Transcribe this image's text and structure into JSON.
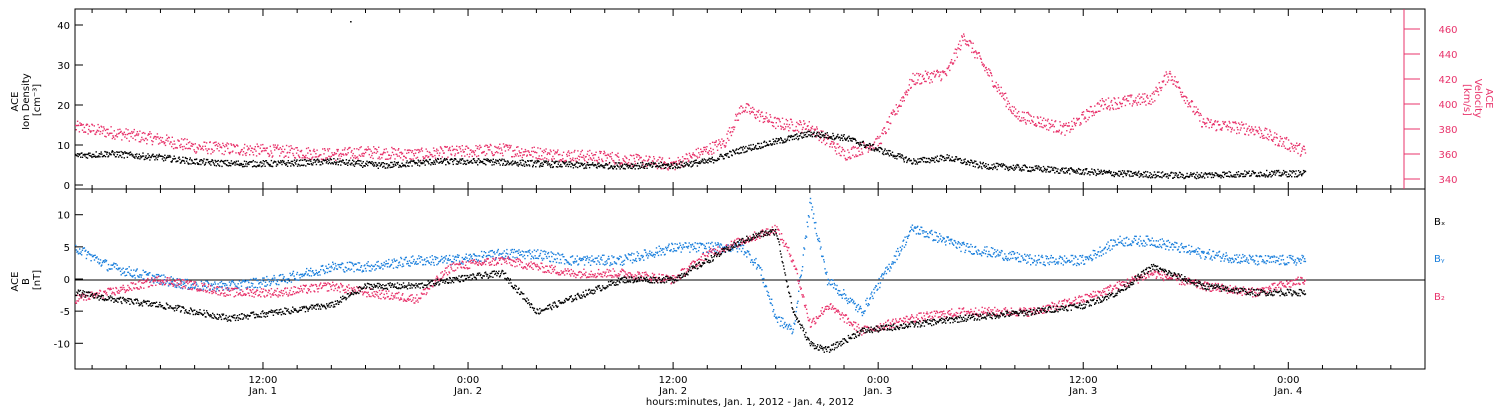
{
  "colors": {
    "black": "#000000",
    "pink": "#e8336b",
    "blue": "#1a7fdc"
  },
  "top_panel": {
    "ylabel_left": [
      "ACE",
      "Ion Density",
      "[cm⁻³]"
    ],
    "ylabel_right": [
      "ACE",
      "Velocity",
      "[km/s]"
    ]
  },
  "bottom_panel": {
    "ylabel_left": [
      "ACE",
      "B",
      "[nT]"
    ],
    "legend": [
      {
        "label": "Bₓ",
        "color": "#000000"
      },
      {
        "label": "Bᵧ",
        "color": "#1a7fdc"
      },
      {
        "label": "B₂",
        "color": "#e8336b"
      }
    ]
  },
  "xaxis": {
    "title": "hours:minutes, Jan.  1, 2012 - Jan.  4, 2012",
    "ticks": [
      {
        "t": 12,
        "l1": "12:00",
        "l2": "Jan. 1"
      },
      {
        "t": 24,
        "l1": "0:00",
        "l2": "Jan. 2"
      },
      {
        "t": 36,
        "l1": "12:00",
        "l2": "Jan. 2"
      },
      {
        "t": 48,
        "l1": "0:00",
        "l2": "Jan. 3"
      },
      {
        "t": 60,
        "l1": "12:00",
        "l2": "Jan. 3"
      },
      {
        "t": 72,
        "l1": "0:00",
        "l2": "Jan. 4"
      }
    ]
  },
  "chart_data": [
    {
      "type": "scatter",
      "title": "",
      "xlabel": "hours:minutes, Jan.  1, 2012 - Jan.  4, 2012",
      "ylabel": "ACE Ion Density [cm⁻³]",
      "y2label": "ACE Velocity [km/s]",
      "xlim": [
        "2012-01-01 01:00",
        "2012-01-04 08:00"
      ],
      "ylim": [
        -1,
        44
      ],
      "y2lim": [
        332,
        476
      ],
      "yticks": [
        0,
        10,
        20,
        30,
        40
      ],
      "y2ticks": [
        340,
        360,
        380,
        400,
        420,
        440,
        460
      ],
      "series": [
        {
          "name": "Ion Density",
          "color": "#000000",
          "axis": "left",
          "x": [
            "2012-01-01 01:00",
            "2012-01-01 03:00",
            "2012-01-01 06:00",
            "2012-01-01 08:00",
            "2012-01-01 10:00",
            "2012-01-01 13:00",
            "2012-01-01 16:00",
            "2012-01-01 19:00",
            "2012-01-01 22:00",
            "2012-01-02 01:00",
            "2012-01-02 04:00",
            "2012-01-02 07:00",
            "2012-01-02 10:00",
            "2012-01-02 12:00",
            "2012-01-02 14:00",
            "2012-01-02 16:00",
            "2012-01-02 18:00",
            "2012-01-02 20:00",
            "2012-01-02 22:00",
            "2012-01-03 00:00",
            "2012-01-03 02:00",
            "2012-01-03 04:00",
            "2012-01-03 06:00",
            "2012-01-03 10:00",
            "2012-01-03 14:00",
            "2012-01-03 18:00",
            "2012-01-03 22:00",
            "2012-01-04 01:00"
          ],
          "y": [
            7.5,
            8,
            7,
            6,
            5.5,
            5.5,
            6,
            5,
            6,
            6,
            5.5,
            5,
            5,
            5,
            6,
            9,
            11,
            13,
            12,
            9,
            6,
            7,
            5,
            4,
            3,
            2.5,
            3,
            3
          ]
        },
        {
          "name": "Velocity",
          "color": "#e8336b",
          "axis": "right",
          "x": [
            "2012-01-01 01:00",
            "2012-01-01 03:00",
            "2012-01-01 06:00",
            "2012-01-01 08:00",
            "2012-01-01 11:00",
            "2012-01-01 14:00",
            "2012-01-01 16:00",
            "2012-01-01 18:00",
            "2012-01-01 21:00",
            "2012-01-01 23:00",
            "2012-01-02 02:00",
            "2012-01-02 05:00",
            "2012-01-02 08:00",
            "2012-01-02 12:00",
            "2012-01-02 15:00",
            "2012-01-02 16:00",
            "2012-01-02 18:00",
            "2012-01-02 20:00",
            "2012-01-02 22:00",
            "2012-01-03 00:00",
            "2012-01-03 02:00",
            "2012-01-03 04:00",
            "2012-01-03 05:00",
            "2012-01-03 08:00",
            "2012-01-03 11:00",
            "2012-01-03 13:00",
            "2012-01-03 16:00",
            "2012-01-03 17:00",
            "2012-01-03 19:00",
            "2012-01-03 22:00",
            "2012-01-04 01:00"
          ],
          "y": [
            382,
            378,
            372,
            366,
            364,
            362,
            360,
            362,
            360,
            362,
            364,
            360,
            358,
            352,
            370,
            398,
            385,
            382,
            360,
            370,
            420,
            425,
            455,
            392,
            380,
            400,
            405,
            425,
            385,
            380,
            362
          ]
        }
      ]
    },
    {
      "type": "scatter",
      "title": "",
      "xlabel": "hours:minutes, Jan.  1, 2012 - Jan.  4, 2012",
      "ylabel": "ACE B [nT]",
      "xlim": [
        "2012-01-01 01:00",
        "2012-01-04 08:00"
      ],
      "ylim": [
        -14,
        14
      ],
      "yticks": [
        -10,
        -5,
        0,
        5,
        10
      ],
      "reference_line": 0,
      "series": [
        {
          "name": "Bₓ",
          "color": "#000000",
          "x": [
            "2012-01-01 01:00",
            "2012-01-01 03:00",
            "2012-01-01 06:00",
            "2012-01-01 08:00",
            "2012-01-01 10:00",
            "2012-01-01 13:00",
            "2012-01-01 16:00",
            "2012-01-01 18:00",
            "2012-01-01 21:00",
            "2012-01-01 23:00",
            "2012-01-02 02:00",
            "2012-01-02 04:00",
            "2012-01-02 06:00",
            "2012-01-02 09:00",
            "2012-01-02 12:00",
            "2012-01-02 14:00",
            "2012-01-02 16:00",
            "2012-01-02 17:00",
            "2012-01-02 18:00",
            "2012-01-02 19:00",
            "2012-01-02 20:00",
            "2012-01-02 21:00",
            "2012-01-02 23:00",
            "2012-01-03 02:00",
            "2012-01-03 05:00",
            "2012-01-03 09:00",
            "2012-01-03 12:00",
            "2012-01-03 14:00",
            "2012-01-03 16:00",
            "2012-01-03 19:00",
            "2012-01-03 22:00",
            "2012-01-04 01:00"
          ],
          "y": [
            -2,
            -3,
            -4,
            -5,
            -6,
            -5,
            -4,
            -1,
            -1,
            0,
            1,
            -5,
            -3,
            0,
            0,
            3,
            6,
            7,
            7.5,
            -5,
            -10,
            -11,
            -8,
            -7,
            -6,
            -5,
            -4,
            -2,
            2,
            -1,
            -2,
            -2
          ]
        },
        {
          "name": "Bᵧ",
          "color": "#1a7fdc",
          "x": [
            "2012-01-01 01:00",
            "2012-01-01 03:00",
            "2012-01-01 06:00",
            "2012-01-01 08:00",
            "2012-01-01 10:00",
            "2012-01-01 13:00",
            "2012-01-01 16:00",
            "2012-01-01 18:00",
            "2012-01-01 21:00",
            "2012-01-01 23:00",
            "2012-01-02 02:00",
            "2012-01-02 04:00",
            "2012-01-02 06:00",
            "2012-01-02 09:00",
            "2012-01-02 12:00",
            "2012-01-02 14:00",
            "2012-01-02 16:00",
            "2012-01-02 17:00",
            "2012-01-02 18:00",
            "2012-01-02 19:00",
            "2012-01-02 20:00",
            "2012-01-02 21:00",
            "2012-01-02 23:00",
            "2012-01-03 02:00",
            "2012-01-03 05:00",
            "2012-01-03 09:00",
            "2012-01-03 12:00",
            "2012-01-03 14:00",
            "2012-01-03 16:00",
            "2012-01-03 19:00",
            "2012-01-03 22:00",
            "2012-01-04 01:00"
          ],
          "y": [
            5,
            2,
            0,
            -1,
            -1,
            0,
            2,
            2,
            3,
            3,
            4,
            4,
            3,
            3,
            5,
            5,
            5,
            2,
            -6,
            -8,
            12,
            0,
            -5,
            8,
            5,
            3,
            3,
            6,
            6,
            4,
            3,
            3
          ]
        },
        {
          "name": "B₂",
          "color": "#e8336b",
          "x": [
            "2012-01-01 01:00",
            "2012-01-01 03:00",
            "2012-01-01 06:00",
            "2012-01-01 08:00",
            "2012-01-01 10:00",
            "2012-01-01 13:00",
            "2012-01-01 16:00",
            "2012-01-01 18:00",
            "2012-01-01 21:00",
            "2012-01-01 23:00",
            "2012-01-02 02:00",
            "2012-01-02 04:00",
            "2012-01-02 06:00",
            "2012-01-02 09:00",
            "2012-01-02 12:00",
            "2012-01-02 14:00",
            "2012-01-02 16:00",
            "2012-01-02 17:00",
            "2012-01-02 18:00",
            "2012-01-02 19:00",
            "2012-01-02 20:00",
            "2012-01-02 21:00",
            "2012-01-02 23:00",
            "2012-01-03 02:00",
            "2012-01-03 05:00",
            "2012-01-03 09:00",
            "2012-01-03 12:00",
            "2012-01-03 14:00",
            "2012-01-03 16:00",
            "2012-01-03 19:00",
            "2012-01-03 22:00",
            "2012-01-04 01:00"
          ],
          "y": [
            -3,
            -2,
            0,
            -1,
            -2,
            -2,
            -1,
            -2,
            -3,
            2,
            3,
            2,
            1,
            1,
            0,
            4,
            6,
            7,
            8,
            3,
            -7,
            -4,
            -8,
            -6,
            -5,
            -5,
            -3,
            -1,
            1,
            -1,
            -2,
            0
          ]
        }
      ]
    }
  ]
}
